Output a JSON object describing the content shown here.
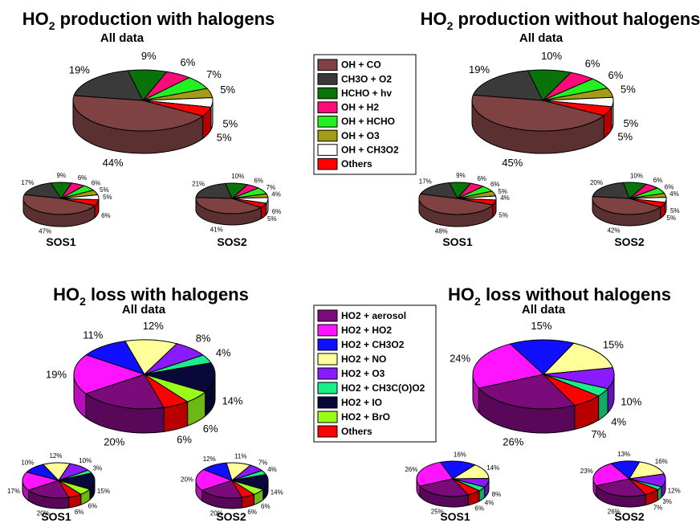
{
  "colors": {
    "OH + CO": "#7f4242",
    "CH3O + O2": "#3a3a3a",
    "HCHO + hv": "#087308",
    "OH + H2": "#ff0a7a",
    "OH + HCHO": "#22f022",
    "OH + O3": "#a39c14",
    "OH + CH3O2": "#ffffff",
    "Others": "#ff0000",
    "HO2 + aerosol": "#7b0a7b",
    "HO2 + HO2": "#ff14ff",
    "HO2 + CH3O2": "#1010ff",
    "HO2 + NO": "#ffff99",
    "HO2 + O3": "#8a1aff",
    "HO2 + CH3C(O)O2": "#1aee8a",
    "HO2 + IO": "#08083a",
    "HO2 + BrO": "#99ff1a"
  },
  "legend_production": [
    "OH + CO",
    "CH3O + O2",
    "HCHO + hv",
    "OH + H2",
    "OH + HCHO",
    "OH + O3",
    "OH + CH3O2",
    "Others"
  ],
  "legend_loss": [
    "HO2 + aerosol",
    "HO2 + HO2",
    "HO2 + CH3O2",
    "HO2 + NO",
    "HO2 + O3",
    "HO2 + CH3C(O)O2",
    "HO2 + IO",
    "HO2 + BrO",
    "Others"
  ],
  "titles": {
    "prod_with": "HO2 production with halogens",
    "prod_without": "HO2 production without halogens",
    "loss_with": "HO2 loss with halogens",
    "loss_without": "HO2 loss without halogens"
  },
  "chart_data": [
    {
      "id": "prod_with_all",
      "type": "pie",
      "title": "HO2 production with halogens",
      "subtitle": "All data",
      "categories": [
        "OH + CO",
        "CH3O + O2",
        "HCHO + hv",
        "OH + H2",
        "OH + HCHO",
        "OH + O3",
        "OH + CH3O2",
        "Others"
      ],
      "values": [
        44,
        19,
        9,
        6,
        7,
        5,
        5,
        5
      ],
      "labels": [
        "44%",
        "19%",
        "9%",
        "6%",
        "7%",
        "5%",
        "5%",
        "5%"
      ]
    },
    {
      "id": "prod_with_sos1",
      "type": "pie",
      "subtitle": "SOS1",
      "categories": [
        "OH + CO",
        "CH3O + O2",
        "HCHO + hv",
        "OH + H2",
        "OH + HCHO",
        "OH + O3",
        "OH + CH3O2",
        "Others"
      ],
      "values": [
        47,
        17,
        9,
        6,
        6,
        5,
        5,
        6
      ],
      "labels": [
        "47%",
        "17%",
        "9%",
        "6%",
        "6%",
        "5%",
        "5%",
        "6%"
      ]
    },
    {
      "id": "prod_with_sos2",
      "type": "pie",
      "subtitle": "SOS2",
      "categories": [
        "OH + CO",
        "CH3O + O2",
        "HCHO + hv",
        "OH + H2",
        "OH + HCHO",
        "OH + O3",
        "OH + CH3O2",
        "Others"
      ],
      "values": [
        41,
        21,
        10,
        6,
        7,
        4,
        6,
        5
      ],
      "labels": [
        "41%",
        "21%",
        "10%",
        "6%",
        "7%",
        "4%",
        "6%",
        "5%"
      ]
    },
    {
      "id": "prod_without_all",
      "type": "pie",
      "title": "HO2 production without halogens",
      "subtitle": "All data",
      "categories": [
        "OH + CO",
        "CH3O + O2",
        "HCHO + hv",
        "OH + H2",
        "OH + HCHO",
        "OH + O3",
        "OH + CH3O2",
        "Others"
      ],
      "values": [
        45,
        19,
        10,
        6,
        6,
        5,
        5,
        5
      ],
      "labels": [
        "45%",
        "19%",
        "10%",
        "6%",
        "6%",
        "5%",
        "5%",
        "5%"
      ]
    },
    {
      "id": "prod_without_sos1",
      "type": "pie",
      "subtitle": "SOS1",
      "categories": [
        "OH + CO",
        "CH3O + O2",
        "HCHO + hv",
        "OH + H2",
        "OH + HCHO",
        "OH + O3",
        "OH + CH3O2",
        "Others"
      ],
      "values": [
        48,
        17,
        9,
        6,
        6,
        5,
        4,
        5
      ],
      "labels": [
        "48%",
        "17%",
        "9%",
        "6%",
        "6%",
        "5%",
        "4%",
        "5%"
      ]
    },
    {
      "id": "prod_without_sos2",
      "type": "pie",
      "subtitle": "SOS2",
      "categories": [
        "OH + CO",
        "CH3O + O2",
        "HCHO + hv",
        "OH + H2",
        "OH + HCHO",
        "OH + O3",
        "OH + CH3O2",
        "Others"
      ],
      "values": [
        42,
        20,
        10,
        6,
        6,
        4,
        5,
        5
      ],
      "labels": [
        "42%",
        "20%",
        "10%",
        "6%",
        "6%",
        "4%",
        "5%",
        "5%"
      ]
    },
    {
      "id": "loss_with_all",
      "type": "pie",
      "title": "HO2 loss with halogens",
      "subtitle": "All data",
      "categories": [
        "HO2 + aerosol",
        "HO2 + HO2",
        "HO2 + CH3O2",
        "HO2 + NO",
        "HO2 + O3",
        "HO2 + CH3C(O)O2",
        "HO2 + IO",
        "HO2 + BrO",
        "Others"
      ],
      "values": [
        20,
        19,
        11,
        12,
        8,
        4,
        14,
        6,
        6
      ],
      "labels": [
        "20%",
        "19%",
        "11%",
        "12%",
        "8%",
        "4%",
        "14%",
        "6%",
        "6%"
      ]
    },
    {
      "id": "loss_with_sos1",
      "type": "pie",
      "subtitle": "SOS1",
      "categories": [
        "HO2 + aerosol",
        "HO2 + HO2",
        "HO2 + CH3O2",
        "HO2 + NO",
        "HO2 + O3",
        "HO2 + CH3C(O)O2",
        "HO2 + IO",
        "HO2 + BrO",
        "Others"
      ],
      "values": [
        20,
        17,
        10,
        12,
        10,
        3,
        15,
        6,
        6
      ],
      "labels": [
        "20%",
        "17%",
        "10%",
        "12%",
        "10%",
        "3%",
        "15%",
        "6%",
        "6%"
      ]
    },
    {
      "id": "loss_with_sos2",
      "type": "pie",
      "subtitle": "SOS2",
      "categories": [
        "HO2 + aerosol",
        "HO2 + HO2",
        "HO2 + CH3O2",
        "HO2 + NO",
        "HO2 + O3",
        "HO2 + CH3C(O)O2",
        "HO2 + IO",
        "HO2 + BrO",
        "Others"
      ],
      "values": [
        20,
        20,
        12,
        11,
        7,
        4,
        14,
        6,
        6
      ],
      "labels": [
        "20%",
        "20%",
        "12%",
        "11%",
        "7%",
        "4%",
        "14%",
        "6%",
        "6%"
      ]
    },
    {
      "id": "loss_without_all",
      "type": "pie",
      "title": "HO2 loss without halogens",
      "subtitle": "All data",
      "categories": [
        "HO2 + aerosol",
        "HO2 + HO2",
        "HO2 + CH3O2",
        "HO2 + NO",
        "HO2 + O3",
        "HO2 + CH3C(O)O2",
        "Others"
      ],
      "values": [
        26,
        24,
        15,
        15,
        10,
        4,
        7
      ],
      "labels": [
        "26%",
        "24%",
        "15%",
        "15%",
        "10%",
        "4%",
        "7%"
      ]
    },
    {
      "id": "loss_without_sos1",
      "type": "pie",
      "subtitle": "SOS1",
      "categories": [
        "HO2 + aerosol",
        "HO2 + HO2",
        "HO2 + CH3O2",
        "HO2 + NO",
        "HO2 + O3",
        "HO2 + CH3C(O)O2",
        "Others"
      ],
      "values": [
        25,
        26,
        16,
        14,
        8,
        4,
        6
      ],
      "labels": [
        "25%",
        "26%",
        "16%",
        "14%",
        "8%",
        "4%",
        "6%"
      ]
    },
    {
      "id": "loss_without_sos2",
      "type": "pie",
      "subtitle": "SOS2",
      "categories": [
        "HO2 + aerosol",
        "HO2 + HO2",
        "HO2 + CH3O2",
        "HO2 + NO",
        "HO2 + O3",
        "HO2 + CH3C(O)O2",
        "Others"
      ],
      "values": [
        26,
        23,
        13,
        16,
        12,
        3,
        7
      ],
      "labels": [
        "26%",
        "23%",
        "13%",
        "16%",
        "12%",
        "3%",
        "7%"
      ]
    }
  ]
}
